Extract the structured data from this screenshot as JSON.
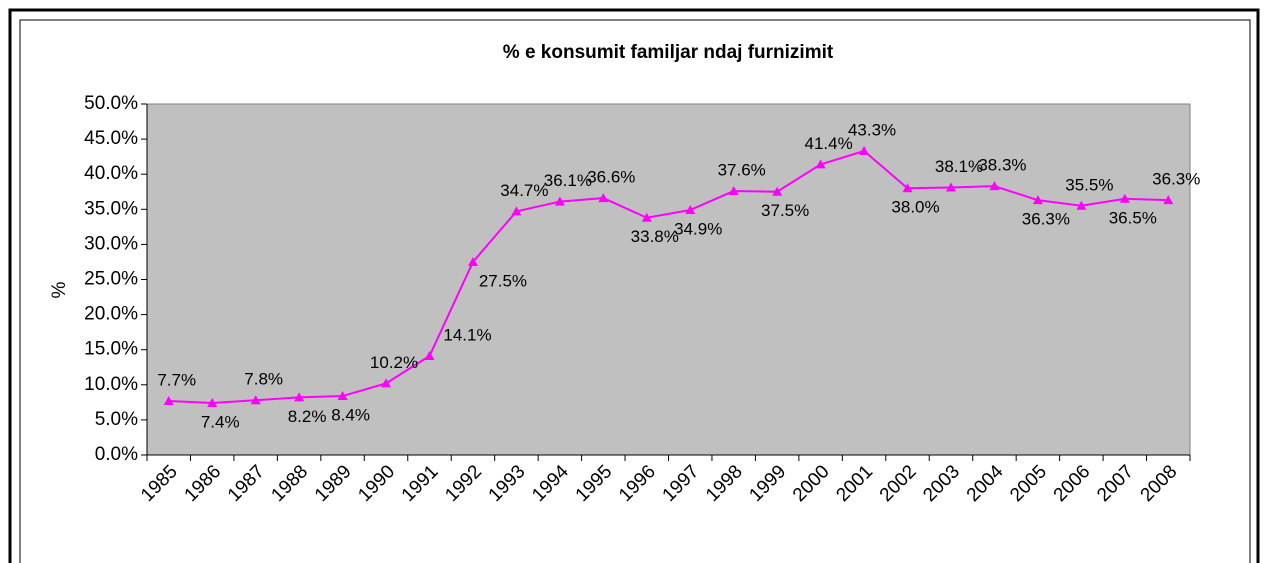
{
  "chart_data": {
    "type": "line",
    "title": "% e konsumit familjar ndaj furnizimit",
    "y_label": "%",
    "categories": [
      "1985",
      "1986",
      "1987",
      "1988",
      "1989",
      "1990",
      "1991",
      "1992",
      "1993",
      "1994",
      "1995",
      "1996",
      "1997",
      "1998",
      "1999",
      "2000",
      "2001",
      "2002",
      "2003",
      "2004",
      "2005",
      "2006",
      "2007",
      "2008"
    ],
    "series": [
      {
        "name": "%",
        "color": "#ff00ff",
        "values": [
          7.7,
          7.4,
          7.8,
          8.2,
          8.4,
          10.2,
          14.1,
          27.5,
          34.7,
          36.1,
          36.6,
          33.8,
          34.9,
          37.6,
          37.5,
          41.4,
          43.3,
          38.0,
          38.1,
          38.3,
          36.3,
          35.5,
          36.5,
          36.3
        ],
        "value_labels": [
          "7.7%",
          "7.4%",
          "7.8%",
          "8.2%",
          "8.4%",
          "10.2%",
          "14.1%",
          "27.5%",
          "34.7%",
          "36.1%",
          "36.6%",
          "33.8%",
          "34.9%",
          "37.6%",
          "37.5%",
          "41.4%",
          "43.3%",
          "38.0%",
          "38.1%",
          "38.3%",
          "36.3%",
          "35.5%",
          "36.5%",
          "36.3%"
        ]
      }
    ],
    "ylim": [
      0,
      50
    ],
    "yticks": [
      {
        "value": 0,
        "label": "0.0%"
      },
      {
        "value": 5,
        "label": "5.0%"
      },
      {
        "value": 10,
        "label": "10.0%"
      },
      {
        "value": 15,
        "label": "15.0%"
      },
      {
        "value": 20,
        "label": "20.0%"
      },
      {
        "value": 25,
        "label": "25.0%"
      },
      {
        "value": 30,
        "label": "30.0%"
      },
      {
        "value": 35,
        "label": "35.0%"
      },
      {
        "value": 40,
        "label": "40.0%"
      },
      {
        "value": 45,
        "label": "45.0%"
      },
      {
        "value": 50,
        "label": "50.0%"
      }
    ],
    "grid": false
  }
}
